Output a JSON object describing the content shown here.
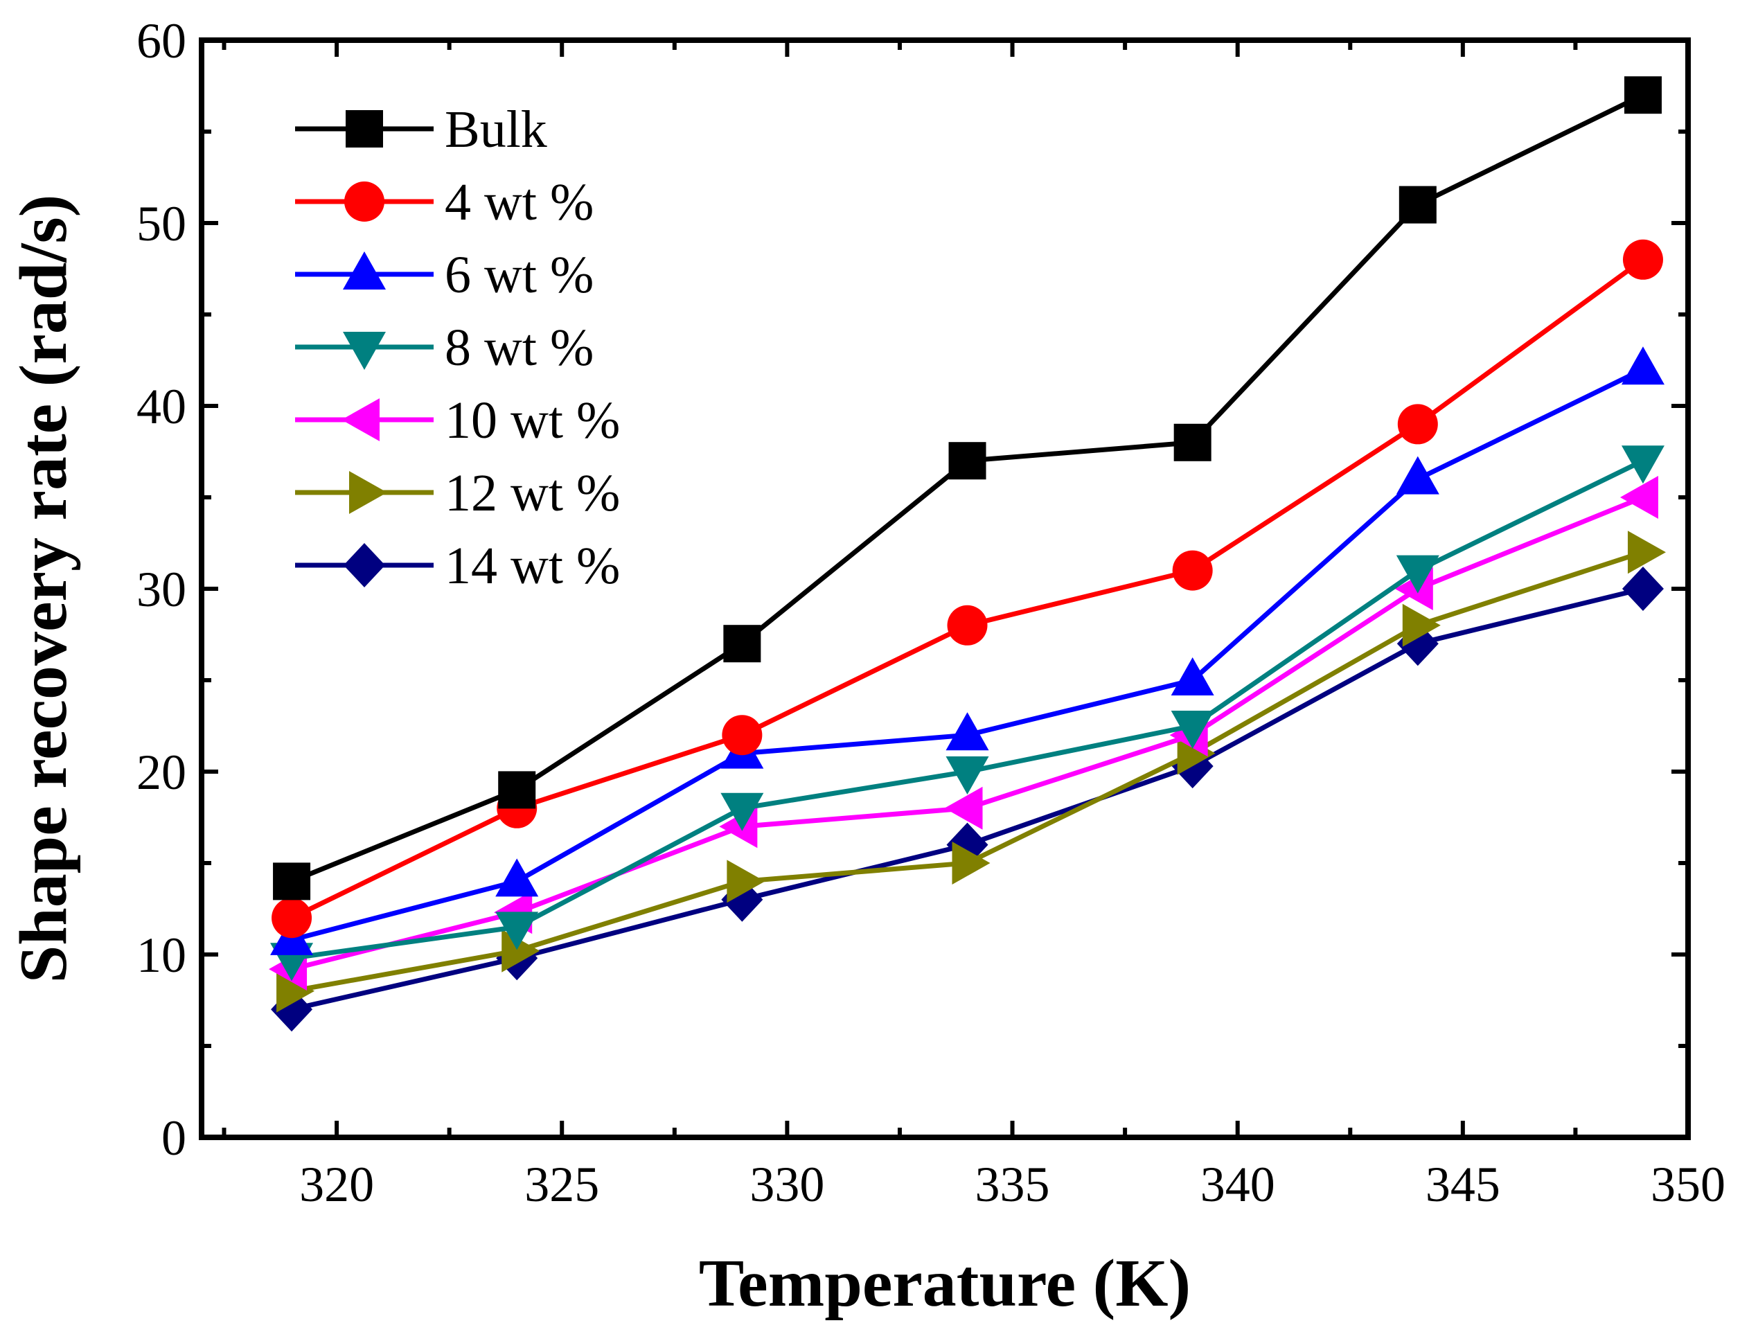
{
  "chart_data": {
    "type": "line",
    "title": "",
    "xlabel": "Temperature (K)",
    "ylabel": "Shape recovery rate (rad/s)",
    "xlim": [
      317,
      350
    ],
    "ylim": [
      0,
      60
    ],
    "xticks": [
      320,
      325,
      330,
      335,
      340,
      345,
      350
    ],
    "yticks": [
      0,
      10,
      20,
      30,
      40,
      50,
      60
    ],
    "grid": false,
    "legend_position": "top-left",
    "x": [
      319,
      324,
      329,
      334,
      339,
      344,
      349
    ],
    "series": [
      {
        "name": "Bulk",
        "color": "#000000",
        "marker": "square",
        "values": [
          14,
          19,
          27,
          37,
          38,
          51,
          57
        ]
      },
      {
        "name": "4 wt %",
        "color": "#ff0000",
        "marker": "circle",
        "values": [
          12,
          18,
          22,
          28,
          31,
          39,
          48
        ]
      },
      {
        "name": "6 wt %",
        "color": "#0000ff",
        "marker": "triangle-up",
        "values": [
          10.8,
          14,
          21,
          22,
          25,
          36,
          42
        ]
      },
      {
        "name": "8 wt %",
        "color": "#008080",
        "marker": "triangle-down",
        "values": [
          9.8,
          11.5,
          18,
          20,
          22.5,
          31,
          37
        ]
      },
      {
        "name": "10 wt %",
        "color": "#ff00ff",
        "marker": "triangle-left",
        "values": [
          9.2,
          12.3,
          17,
          18,
          22,
          30,
          35
        ]
      },
      {
        "name": "12 wt %",
        "color": "#808000",
        "marker": "triangle-right",
        "values": [
          8,
          10.2,
          14,
          15,
          21,
          28,
          32
        ]
      },
      {
        "name": "14 wt %",
        "color": "#000080",
        "marker": "diamond",
        "values": [
          7,
          9.8,
          13,
          16,
          20.3,
          27,
          30
        ]
      }
    ]
  }
}
